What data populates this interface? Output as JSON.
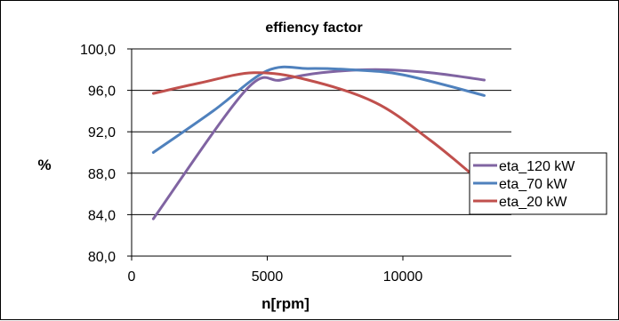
{
  "chart_data": {
    "type": "line",
    "title": "effiency factor",
    "xlabel": "n[rpm]",
    "ylabel": "%",
    "xlim": [
      0,
      14000
    ],
    "ylim": [
      80,
      100
    ],
    "xticks": [
      0,
      5000,
      10000
    ],
    "xtick_labels": [
      "0",
      "5000",
      "10000"
    ],
    "yticks": [
      80,
      84,
      88,
      92,
      96,
      100
    ],
    "ytick_labels": [
      "80,0",
      "84,0",
      "88,0",
      "92,0",
      "96,0",
      "100,0"
    ],
    "grid": "horizontal",
    "legend_position": "right",
    "series": [
      {
        "name": "eta_120 kW",
        "color": "#8064A2",
        "x": [
          800,
          4200,
          5500,
          7000,
          9000,
          11000,
          13000
        ],
        "y": [
          83.6,
          96.0,
          97.0,
          97.7,
          98.0,
          97.7,
          97.0
        ]
      },
      {
        "name": "eta_70 kW",
        "color": "#4F81BD",
        "x": [
          800,
          3000,
          5000,
          6500,
          8000,
          10000,
          13000
        ],
        "y": [
          90.0,
          94.0,
          97.9,
          98.1,
          98.0,
          97.5,
          95.5
        ]
      },
      {
        "name": "eta_20 kW",
        "color": "#C0504D",
        "x": [
          800,
          2500,
          4500,
          6500,
          9000,
          11000,
          12500
        ],
        "y": [
          95.7,
          96.7,
          97.7,
          97.0,
          94.8,
          91.2,
          88.0
        ]
      }
    ]
  }
}
